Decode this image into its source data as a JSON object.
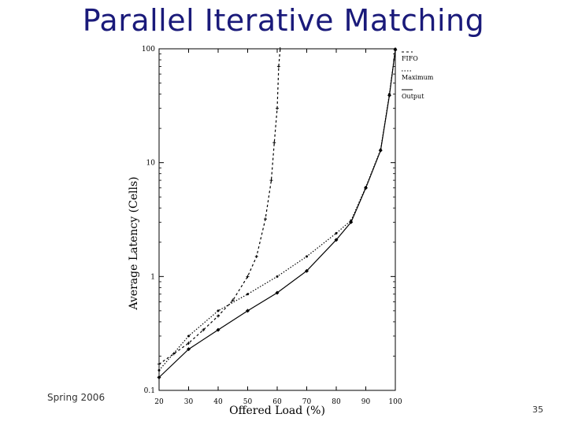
{
  "slide": {
    "title": "Parallel Iterative Matching",
    "footer_left": "Spring 2006",
    "page_number": "35"
  },
  "chart_data": {
    "type": "line",
    "title": "",
    "xlabel": "Offered Load (%)",
    "ylabel": "Average Latency (Cells)",
    "xlim": [
      20,
      100
    ],
    "ylim": [
      0.1,
      100
    ],
    "yscale": "log",
    "x_ticks": [
      20,
      30,
      40,
      50,
      60,
      70,
      80,
      90,
      100
    ],
    "y_ticks": [
      0.1,
      1,
      10,
      100
    ],
    "y_tick_labels": [
      "0.1",
      "1",
      "10",
      "100"
    ],
    "legend_position": "top-right",
    "grid": false,
    "series": [
      {
        "name": "FIFO",
        "style": "dashed",
        "points": [
          [
            20,
            0.17
          ],
          [
            25,
            0.21
          ],
          [
            30,
            0.26
          ],
          [
            35,
            0.34
          ],
          [
            40,
            0.45
          ],
          [
            45,
            0.62
          ],
          [
            50,
            1.0
          ],
          [
            53,
            1.5
          ],
          [
            56,
            3.2
          ],
          [
            58,
            7
          ],
          [
            59,
            15
          ],
          [
            60,
            30
          ],
          [
            60.5,
            70
          ],
          [
            61,
            100
          ]
        ]
      },
      {
        "name": "Maximum",
        "style": "dotted",
        "points": [
          [
            20,
            0.15
          ],
          [
            30,
            0.3
          ],
          [
            40,
            0.5
          ],
          [
            50,
            0.7
          ],
          [
            60,
            1.0
          ],
          [
            70,
            1.5
          ],
          [
            80,
            2.4
          ],
          [
            85,
            3.1
          ],
          [
            90,
            6.1
          ],
          [
            95,
            13
          ],
          [
            98,
            40
          ],
          [
            100,
            100
          ]
        ]
      },
      {
        "name": "Output",
        "style": "solid-markers",
        "points": [
          [
            20,
            0.13
          ],
          [
            30,
            0.23
          ],
          [
            40,
            0.34
          ],
          [
            50,
            0.5
          ],
          [
            60,
            0.72
          ],
          [
            70,
            1.12
          ],
          [
            80,
            2.1
          ],
          [
            85,
            3.0
          ],
          [
            90,
            6.0
          ],
          [
            95,
            12.8
          ],
          [
            98,
            39
          ],
          [
            100,
            98
          ]
        ]
      }
    ]
  }
}
